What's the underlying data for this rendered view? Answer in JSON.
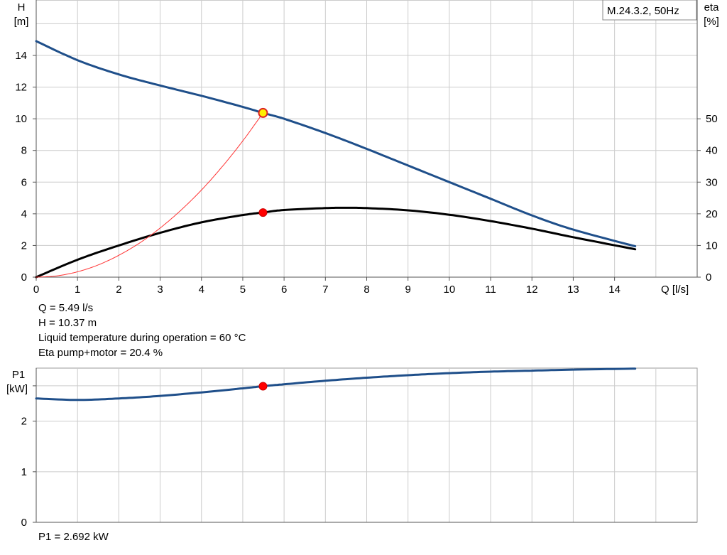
{
  "chart_data": [
    {
      "type": "line",
      "legend_box": "M.24.3.2, 50Hz",
      "left_axis": {
        "label": "H",
        "unit": "[m]",
        "ylim": [
          0,
          17.5
        ],
        "ticks": [
          0,
          2,
          4,
          6,
          8,
          10,
          12,
          14
        ]
      },
      "right_axis": {
        "label": "eta",
        "unit": "[%]",
        "ylim": [
          0,
          87.5
        ],
        "ticks": [
          0,
          10,
          20,
          30,
          40,
          50
        ]
      },
      "x_axis": {
        "label": "Q [l/s]",
        "xlim": [
          0,
          16
        ],
        "ticks": [
          0,
          1,
          2,
          3,
          4,
          5,
          6,
          7,
          8,
          9,
          10,
          11,
          12,
          13,
          14
        ]
      },
      "grid": true,
      "series": [
        {
          "name": "H",
          "axis": "left",
          "color": "#1f4f8a",
          "x": [
            0,
            1,
            2,
            3,
            4,
            5,
            5.49,
            6,
            7,
            8,
            9,
            10,
            11,
            12,
            13,
            14.5
          ],
          "y": [
            14.9,
            13.7,
            12.8,
            12.1,
            11.45,
            10.75,
            10.37,
            10.0,
            9.1,
            8.1,
            7.05,
            6.0,
            4.95,
            3.9,
            3.0,
            1.95
          ]
        },
        {
          "name": "eta",
          "axis": "right",
          "color": "#000000",
          "x": [
            0,
            1,
            2,
            3,
            4,
            5,
            5.49,
            6,
            7,
            7.5,
            8,
            9,
            10,
            11,
            12,
            13,
            14.5
          ],
          "y": [
            0,
            5.5,
            10.0,
            14.0,
            17.3,
            19.6,
            20.4,
            21.2,
            21.8,
            21.9,
            21.8,
            21.1,
            19.7,
            17.7,
            15.3,
            12.6,
            8.8
          ]
        },
        {
          "name": "system",
          "axis": "left",
          "color": "#ff3333",
          "x": [
            0,
            0.5,
            1,
            1.5,
            2,
            2.5,
            3,
            3.5,
            4,
            4.5,
            5,
            5.49
          ],
          "y": [
            0,
            0.08,
            0.34,
            0.77,
            1.38,
            2.15,
            3.1,
            4.22,
            5.5,
            6.97,
            8.6,
            10.37
          ]
        }
      ],
      "operating_point": {
        "Q": 5.49,
        "H": 10.37,
        "eta": 20.4
      },
      "annotations": [
        "Q = 5.49 l/s",
        "H = 10.37 m",
        "Liquid temperature during operation = 60 °C",
        "Eta pump+motor = 20.4 %"
      ]
    },
    {
      "type": "line",
      "left_axis": {
        "label": "P1",
        "unit": "[kW]",
        "ylim": [
          0,
          3.05
        ],
        "ticks": [
          0,
          1,
          2
        ]
      },
      "x_axis": {
        "xlim": [
          0,
          16
        ]
      },
      "grid": true,
      "series": [
        {
          "name": "P1",
          "axis": "left",
          "color": "#1f4f8a",
          "x": [
            0,
            1,
            2,
            3,
            4,
            5,
            5.49,
            6,
            7,
            8,
            9,
            10,
            11,
            12,
            13,
            14.5
          ],
          "y": [
            2.45,
            2.42,
            2.45,
            2.5,
            2.57,
            2.65,
            2.692,
            2.73,
            2.8,
            2.86,
            2.91,
            2.95,
            2.98,
            3.0,
            3.02,
            3.04
          ]
        }
      ],
      "operating_point": {
        "Q": 5.49,
        "P1": 2.692
      },
      "annotations": [
        "P1 = 2.692 kW"
      ]
    }
  ]
}
